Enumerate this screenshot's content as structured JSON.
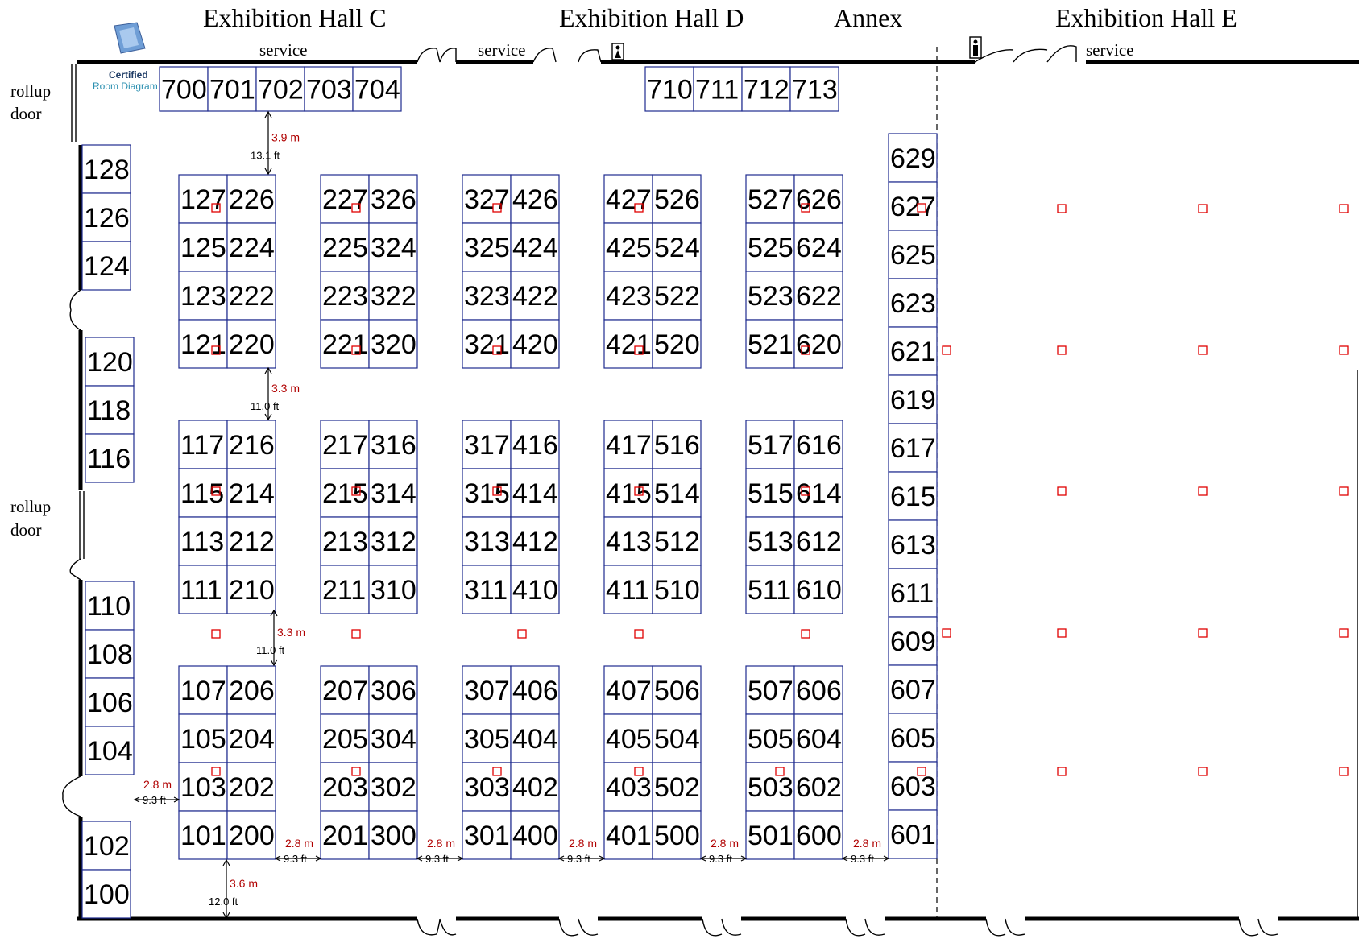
{
  "halls": [
    {
      "id": "c",
      "name": "Exhibition Hall C"
    },
    {
      "id": "d",
      "name": "Exhibition Hall D"
    },
    {
      "id": "annex",
      "name": "Annex"
    },
    {
      "id": "e",
      "name": "Exhibition Hall E"
    }
  ],
  "service_labels": [
    "service",
    "service",
    "service"
  ],
  "rollup_doors": [
    {
      "line1": "rollup",
      "line2": "door"
    },
    {
      "line1": "rollup",
      "line2": "door"
    }
  ],
  "certified_badge": {
    "line1": "Certified",
    "line2": "Room Diagram"
  },
  "colors": {
    "booth_border": "#1e2b8f",
    "wall": "#000000",
    "column_marker": "#e00000",
    "metric_text": "#b00000"
  },
  "booths": {
    "top_row_c": [
      "700",
      "701",
      "702",
      "703",
      "704"
    ],
    "top_row_d": [
      "710",
      "711",
      "712",
      "713"
    ],
    "left_wall": [
      "128",
      "126",
      "124",
      "120",
      "118",
      "116",
      "110",
      "108",
      "106",
      "104",
      "102",
      "100"
    ],
    "right_wall": [
      "629",
      "627",
      "625",
      "623",
      "621",
      "619",
      "617",
      "615",
      "613",
      "611",
      "609",
      "607",
      "605",
      "603",
      "601"
    ],
    "islands": [
      [
        [
          [
            "127",
            "226"
          ],
          [
            "125",
            "224"
          ],
          [
            "123",
            "222"
          ],
          [
            "121",
            "220"
          ]
        ],
        [
          [
            "117",
            "216"
          ],
          [
            "115",
            "214"
          ],
          [
            "113",
            "212"
          ],
          [
            "111",
            "210"
          ]
        ],
        [
          [
            "107",
            "206"
          ],
          [
            "105",
            "204"
          ],
          [
            "103",
            "202"
          ],
          [
            "101",
            "200"
          ]
        ]
      ],
      [
        [
          [
            "227",
            "326"
          ],
          [
            "225",
            "324"
          ],
          [
            "223",
            "322"
          ],
          [
            "221",
            "320"
          ]
        ],
        [
          [
            "217",
            "316"
          ],
          [
            "215",
            "314"
          ],
          [
            "213",
            "312"
          ],
          [
            "211",
            "310"
          ]
        ],
        [
          [
            "207",
            "306"
          ],
          [
            "205",
            "304"
          ],
          [
            "203",
            "302"
          ],
          [
            "201",
            "300"
          ]
        ]
      ],
      [
        [
          [
            "327",
            "426"
          ],
          [
            "325",
            "424"
          ],
          [
            "323",
            "422"
          ],
          [
            "321",
            "420"
          ]
        ],
        [
          [
            "317",
            "416"
          ],
          [
            "315",
            "414"
          ],
          [
            "313",
            "412"
          ],
          [
            "311",
            "410"
          ]
        ],
        [
          [
            "307",
            "406"
          ],
          [
            "305",
            "404"
          ],
          [
            "303",
            "402"
          ],
          [
            "301",
            "400"
          ]
        ]
      ],
      [
        [
          [
            "427",
            "526"
          ],
          [
            "425",
            "524"
          ],
          [
            "423",
            "522"
          ],
          [
            "421",
            "520"
          ]
        ],
        [
          [
            "417",
            "516"
          ],
          [
            "415",
            "514"
          ],
          [
            "413",
            "512"
          ],
          [
            "411",
            "510"
          ]
        ],
        [
          [
            "407",
            "506"
          ],
          [
            "405",
            "504"
          ],
          [
            "403",
            "502"
          ],
          [
            "401",
            "500"
          ]
        ]
      ],
      [
        [
          [
            "527",
            "626"
          ],
          [
            "525",
            "624"
          ],
          [
            "523",
            "622"
          ],
          [
            "521",
            "620"
          ]
        ],
        [
          [
            "517",
            "616"
          ],
          [
            "515",
            "614"
          ],
          [
            "513",
            "612"
          ],
          [
            "511",
            "610"
          ]
        ],
        [
          [
            "507",
            "606"
          ],
          [
            "505",
            "604"
          ],
          [
            "503",
            "602"
          ],
          [
            "501",
            "600"
          ]
        ]
      ]
    ]
  },
  "measurements": {
    "top_gap": {
      "m": "3.9 m",
      "ft": "13.1 ft"
    },
    "row_gap_1": {
      "m": "3.3 m",
      "ft": "11.0 ft"
    },
    "row_gap_2": {
      "m": "3.3 m",
      "ft": "11.0 ft"
    },
    "bottom_gap": {
      "m": "3.6 m",
      "ft": "12.0 ft"
    },
    "aisles": [
      {
        "m": "2.8 m",
        "ft": "9.3 ft"
      },
      {
        "m": "2.8 m",
        "ft": "9.3 ft"
      },
      {
        "m": "2.8 m",
        "ft": "9.3 ft"
      },
      {
        "m": "2.8 m",
        "ft": "9.3 ft"
      },
      {
        "m": "2.8 m",
        "ft": "9.3 ft"
      },
      {
        "m": "2.8 m",
        "ft": "9.3 ft"
      }
    ]
  }
}
